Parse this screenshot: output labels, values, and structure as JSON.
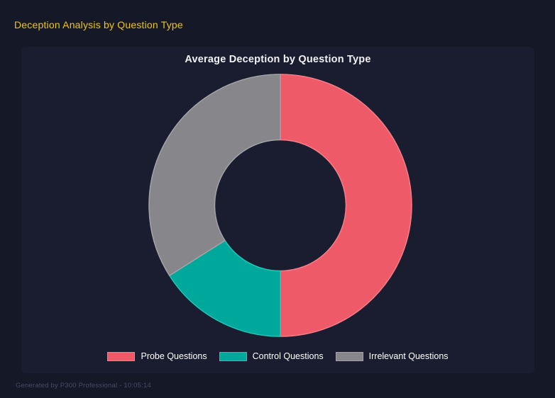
{
  "page": {
    "title": "Deception Analysis by Question Type",
    "title_color": "#efc50f",
    "background": "#151827",
    "panel_background": "#1a1d2f",
    "footer": "Generated by P300 Professional - 10:05:14",
    "footer_color": "#464c63"
  },
  "chart_data": {
    "type": "pie",
    "subtype": "doughnut",
    "title": "Average Deception by Question Type",
    "labels": [
      "Probe Questions",
      "Control Questions",
      "Irrelevant Questions"
    ],
    "values_percent": [
      50,
      16,
      34
    ],
    "colors": [
      "#ee5a68",
      "#00a89b",
      "#87868a"
    ],
    "border_colors": [
      "#f67d88",
      "#1fc7b8",
      "#a3a2a7"
    ],
    "start_angle_deg": 0,
    "clockwise": true,
    "cutout_ratio": 0.5,
    "legend_position": "bottom",
    "data_labels_shown": false
  }
}
